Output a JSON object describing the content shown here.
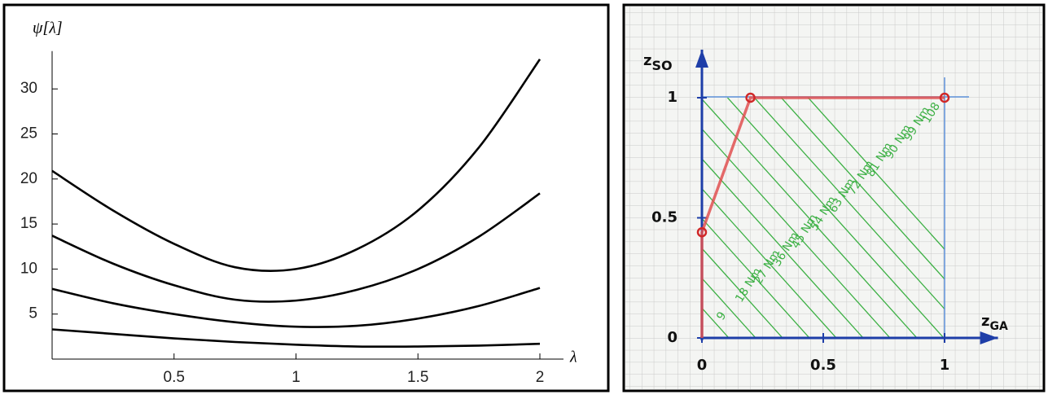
{
  "chart_data": [
    {
      "type": "line",
      "ylabel": "ψ[λ]",
      "xlabel": "λ",
      "x": [
        0,
        0.25,
        0.5,
        0.75,
        1,
        1.25,
        1.5,
        1.75,
        2
      ],
      "series": [
        {
          "color": "#000000",
          "values": [
            20.9,
            16.5,
            12.8,
            10.2,
            10.0,
            12.2,
            16.5,
            23.5,
            33.3
          ]
        },
        {
          "color": "#000000",
          "values": [
            13.7,
            10.6,
            8.2,
            6.6,
            6.5,
            7.7,
            10.0,
            13.6,
            18.4
          ]
        },
        {
          "color": "#000000",
          "values": [
            7.8,
            6.2,
            5.0,
            4.1,
            3.6,
            3.7,
            4.5,
            5.9,
            7.9
          ]
        },
        {
          "color": "#000000",
          "values": [
            3.3,
            2.8,
            2.3,
            1.9,
            1.6,
            1.4,
            1.4,
            1.5,
            1.7
          ]
        }
      ],
      "xlim": [
        0,
        2.05
      ],
      "ylim": [
        0,
        34.2
      ],
      "xticks": [
        0.5,
        1,
        1.5,
        2
      ],
      "yticks": [
        5,
        10,
        15,
        20,
        25,
        30
      ]
    },
    {
      "type": "line",
      "ylabel": "z",
      "ylabel_subscript": "SO",
      "xlabel": "z",
      "xlabel_subscript": "GA",
      "x": [
        0,
        0,
        0.2,
        1
      ],
      "series": [
        {
          "color": "#e05050",
          "values": [
            0,
            0.44,
            1,
            1
          ]
        }
      ],
      "xlim": [
        0,
        1.22
      ],
      "ylim": [
        0,
        1.2
      ],
      "xticks": [
        0,
        0.5,
        1
      ],
      "yticks": [
        0,
        0.5,
        1
      ],
      "isoline_color": "#3cb044",
      "annotations": [
        "9",
        "18 Nm",
        "27 Nm",
        "36 Nm",
        "45 Nm",
        "54 Nm",
        "63 Nm",
        "72 Nm",
        "81 Nm",
        "90 Nm",
        "99 Nm",
        "108"
      ]
    }
  ]
}
